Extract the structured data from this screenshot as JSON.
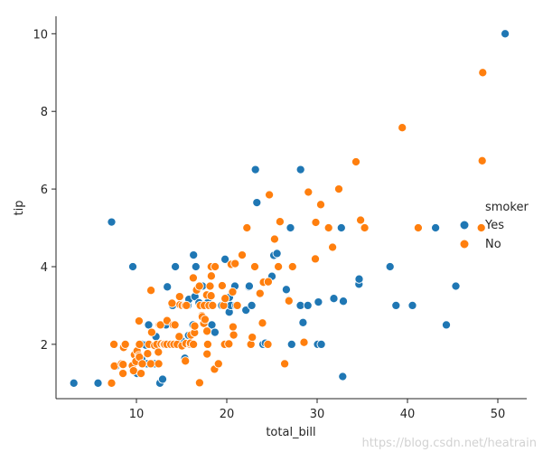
{
  "chart_data": {
    "type": "scatter",
    "title": "",
    "xlabel": "total_bill",
    "ylabel": "tip",
    "xlim": [
      1.1,
      53.2
    ],
    "ylim": [
      0.6,
      10.45
    ],
    "xticks": [
      10,
      20,
      30,
      40,
      50
    ],
    "yticks": [
      2,
      4,
      6,
      8,
      10
    ],
    "grid": false,
    "legend_title": "smoker",
    "legend_position": "right",
    "colors": {
      "Yes": "#1f77b4",
      "No": "#ff7f0e"
    },
    "series": [
      {
        "name": "Yes",
        "color": "#1f77b4",
        "points": [
          [
            3.07,
            1.0
          ],
          [
            5.75,
            1.0
          ],
          [
            7.25,
            5.15
          ],
          [
            7.74,
            1.44
          ],
          [
            9.6,
            4.0
          ],
          [
            10.07,
            1.25
          ],
          [
            10.34,
            2.0
          ],
          [
            10.59,
            1.61
          ],
          [
            10.63,
            2.0
          ],
          [
            11.02,
            1.98
          ],
          [
            11.17,
            1.5
          ],
          [
            11.35,
            2.5
          ],
          [
            12.03,
            1.5
          ],
          [
            12.16,
            2.2
          ],
          [
            12.6,
            1.0
          ],
          [
            12.9,
            1.1
          ],
          [
            13.0,
            2.0
          ],
          [
            13.16,
            2.0
          ],
          [
            13.27,
            2.5
          ],
          [
            13.42,
            3.48
          ],
          [
            13.51,
            2.0
          ],
          [
            14.0,
            3.0
          ],
          [
            14.31,
            4.0
          ],
          [
            14.48,
            2.0
          ],
          [
            15.01,
            2.09
          ],
          [
            15.36,
            1.64
          ],
          [
            15.69,
            3.0
          ],
          [
            15.77,
            2.23
          ],
          [
            15.81,
            3.16
          ],
          [
            16.0,
            2.0
          ],
          [
            16.27,
            2.5
          ],
          [
            16.32,
            4.3
          ],
          [
            16.47,
            3.23
          ],
          [
            16.58,
            4.0
          ],
          [
            16.93,
            3.07
          ],
          [
            17.31,
            3.5
          ],
          [
            17.92,
            3.08
          ],
          [
            18.24,
            3.76
          ],
          [
            18.35,
            2.5
          ],
          [
            18.69,
            2.31
          ],
          [
            19.44,
            3.0
          ],
          [
            19.81,
            4.19
          ],
          [
            20.08,
            3.15
          ],
          [
            20.23,
            2.01
          ],
          [
            20.27,
            2.83
          ],
          [
            20.29,
            3.21
          ],
          [
            20.45,
            3.0
          ],
          [
            20.9,
            3.5
          ],
          [
            21.01,
            3.0
          ],
          [
            22.12,
            2.88
          ],
          [
            22.42,
            3.48
          ],
          [
            22.49,
            3.5
          ],
          [
            22.76,
            3.0
          ],
          [
            23.17,
            6.5
          ],
          [
            23.33,
            5.65
          ],
          [
            24.01,
            2.0
          ],
          [
            24.27,
            2.03
          ],
          [
            25.0,
            3.75
          ],
          [
            25.21,
            4.29
          ],
          [
            25.56,
            4.34
          ],
          [
            26.59,
            3.41
          ],
          [
            26.86,
            3.14
          ],
          [
            27.05,
            5.0
          ],
          [
            27.18,
            2.0
          ],
          [
            28.15,
            3.0
          ],
          [
            28.17,
            6.5
          ],
          [
            28.44,
            2.56
          ],
          [
            28.97,
            3.0
          ],
          [
            30.06,
            2.0
          ],
          [
            30.14,
            3.09
          ],
          [
            30.46,
            2.0
          ],
          [
            31.85,
            3.18
          ],
          [
            32.68,
            5.0
          ],
          [
            32.83,
            1.17
          ],
          [
            32.9,
            3.11
          ],
          [
            34.63,
            3.55
          ],
          [
            34.65,
            3.68
          ],
          [
            38.07,
            4.0
          ],
          [
            38.73,
            3.0
          ],
          [
            40.55,
            3.0
          ],
          [
            43.11,
            5.0
          ],
          [
            44.3,
            2.5
          ],
          [
            45.35,
            3.5
          ],
          [
            50.81,
            10.0
          ]
        ]
      },
      {
        "name": "No",
        "color": "#ff7f0e",
        "points": [
          [
            7.25,
            1.0
          ],
          [
            7.51,
            2.0
          ],
          [
            7.56,
            1.44
          ],
          [
            8.35,
            1.5
          ],
          [
            8.51,
            1.25
          ],
          [
            8.52,
            1.48
          ],
          [
            8.58,
            1.92
          ],
          [
            8.77,
            2.0
          ],
          [
            9.55,
            1.45
          ],
          [
            9.68,
            1.32
          ],
          [
            9.78,
            1.73
          ],
          [
            9.94,
            1.56
          ],
          [
            10.07,
            1.83
          ],
          [
            10.27,
            1.71
          ],
          [
            10.29,
            2.6
          ],
          [
            10.33,
            1.67
          ],
          [
            10.34,
            2.0
          ],
          [
            10.51,
            1.25
          ],
          [
            10.65,
            1.5
          ],
          [
            11.24,
            1.76
          ],
          [
            11.38,
            2.0
          ],
          [
            11.59,
            1.5
          ],
          [
            11.61,
            3.39
          ],
          [
            11.69,
            2.31
          ],
          [
            12.02,
            1.97
          ],
          [
            12.26,
            2.0
          ],
          [
            12.43,
            1.8
          ],
          [
            12.46,
            1.5
          ],
          [
            12.54,
            2.5
          ],
          [
            12.66,
            2.5
          ],
          [
            12.74,
            2.01
          ],
          [
            13.03,
            2.0
          ],
          [
            13.13,
            2.0
          ],
          [
            13.37,
            2.0
          ],
          [
            13.39,
            2.61
          ],
          [
            13.81,
            2.0
          ],
          [
            13.94,
            3.06
          ],
          [
            14.07,
            2.5
          ],
          [
            14.15,
            2.0
          ],
          [
            14.26,
            2.5
          ],
          [
            14.52,
            2.0
          ],
          [
            14.73,
            2.2
          ],
          [
            14.78,
            3.23
          ],
          [
            14.83,
            3.02
          ],
          [
            15.04,
            1.96
          ],
          [
            15.06,
            3.0
          ],
          [
            15.38,
            3.0
          ],
          [
            15.42,
            1.57
          ],
          [
            15.48,
            2.02
          ],
          [
            15.53,
            3.0
          ],
          [
            15.95,
            2.0
          ],
          [
            15.98,
            2.03
          ],
          [
            16.04,
            2.24
          ],
          [
            16.29,
            3.71
          ],
          [
            16.31,
            2.0
          ],
          [
            16.43,
            2.3
          ],
          [
            16.45,
            2.47
          ],
          [
            16.66,
            3.4
          ],
          [
            16.97,
            3.5
          ],
          [
            16.99,
            1.01
          ],
          [
            17.07,
            3.0
          ],
          [
            17.26,
            2.74
          ],
          [
            17.29,
            2.71
          ],
          [
            17.46,
            2.54
          ],
          [
            17.51,
            3.0
          ],
          [
            17.59,
            2.64
          ],
          [
            17.78,
            3.27
          ],
          [
            17.81,
            2.34
          ],
          [
            17.82,
            1.75
          ],
          [
            17.89,
            2.0
          ],
          [
            18.04,
            3.0
          ],
          [
            18.15,
            3.5
          ],
          [
            18.26,
            3.25
          ],
          [
            18.28,
            4.0
          ],
          [
            18.29,
            3.76
          ],
          [
            18.43,
            3.0
          ],
          [
            18.64,
            1.36
          ],
          [
            18.71,
            4.0
          ],
          [
            19.08,
            1.5
          ],
          [
            19.49,
            3.51
          ],
          [
            19.65,
            3.0
          ],
          [
            19.77,
            2.0
          ],
          [
            19.82,
            3.18
          ],
          [
            20.23,
            2.01
          ],
          [
            20.49,
            4.06
          ],
          [
            20.65,
            3.35
          ],
          [
            20.69,
            2.45
          ],
          [
            20.76,
            2.24
          ],
          [
            20.92,
            4.08
          ],
          [
            21.16,
            3.0
          ],
          [
            21.7,
            4.3
          ],
          [
            22.23,
            5.0
          ],
          [
            22.67,
            2.0
          ],
          [
            22.82,
            2.18
          ],
          [
            23.1,
            4.0
          ],
          [
            23.68,
            3.31
          ],
          [
            23.95,
            2.55
          ],
          [
            24.06,
            3.6
          ],
          [
            24.55,
            2.0
          ],
          [
            24.59,
            3.61
          ],
          [
            24.71,
            5.85
          ],
          [
            25.29,
            4.71
          ],
          [
            25.71,
            4.0
          ],
          [
            25.89,
            5.16
          ],
          [
            26.41,
            1.5
          ],
          [
            26.88,
            3.12
          ],
          [
            27.2,
            4.0
          ],
          [
            27.28,
            4.0
          ],
          [
            28.55,
            2.05
          ],
          [
            29.03,
            5.92
          ],
          [
            29.8,
            4.2
          ],
          [
            29.85,
            5.14
          ],
          [
            30.4,
            5.6
          ],
          [
            31.27,
            5.0
          ],
          [
            31.71,
            4.5
          ],
          [
            32.4,
            6.0
          ],
          [
            34.3,
            6.7
          ],
          [
            34.81,
            5.2
          ],
          [
            35.26,
            5.0
          ],
          [
            39.42,
            7.58
          ],
          [
            41.19,
            5.0
          ],
          [
            48.27,
            6.73
          ],
          [
            48.17,
            5.0
          ],
          [
            48.33,
            9.0
          ]
        ]
      }
    ]
  },
  "watermark": "https://blog.csdn.net/heatrain"
}
